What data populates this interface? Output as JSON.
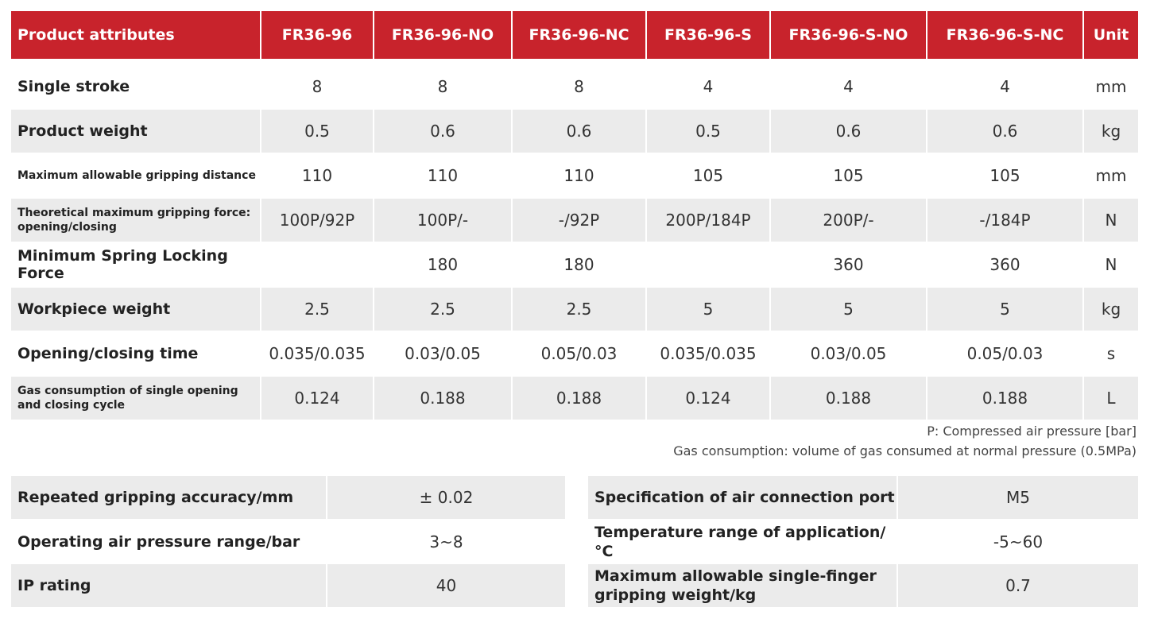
{
  "table": {
    "header": [
      "Product attributes",
      "FR36-96",
      "FR36-96-NO",
      "FR36-96-NC",
      "FR36-96-S",
      "FR36-96-S-NO",
      "FR36-96-S-NC",
      "Unit"
    ],
    "rows": [
      [
        "Single stroke",
        "8",
        "8",
        "8",
        "4",
        "4",
        "4",
        "mm"
      ],
      [
        "Product weight",
        "0.5",
        "0.6",
        "0.6",
        "0.5",
        "0.6",
        "0.6",
        "kg"
      ],
      [
        "Maximum allowable gripping distance",
        "110",
        "110",
        "110",
        "105",
        "105",
        "105",
        "mm"
      ],
      [
        "Theoretical maximum gripping force: opening/closing",
        "100P/92P",
        "100P/-",
        "-/92P",
        "200P/184P",
        "200P/-",
        "-/184P",
        "N"
      ],
      [
        "Minimum Spring Locking Force",
        null,
        "180",
        "180",
        null,
        "360",
        "360",
        "N"
      ],
      [
        "Workpiece weight",
        "2.5",
        "2.5",
        "2.5",
        "5",
        "5",
        "5",
        "kg"
      ],
      [
        "Opening/closing time",
        "0.035/0.035",
        "0.03/0.05",
        "0.05/0.03",
        "0.035/0.035",
        "0.03/0.05",
        "0.05/0.03",
        "s"
      ],
      [
        "Gas consumption of single opening and closing cycle",
        "0.124",
        "0.188",
        "0.188",
        "0.124",
        "0.188",
        "0.188",
        "L"
      ]
    ]
  },
  "notes": [
    "P: Compressed air pressure [bar]",
    "Gas consumption: volume of gas consumed at normal pressure (0.5MPa)"
  ],
  "specs": {
    "left": [
      [
        "Repeated gripping accuracy/mm",
        "± 0.02"
      ],
      [
        "Operating air pressure range/bar",
        "3~8"
      ],
      [
        "IP rating",
        "40"
      ]
    ],
    "right": [
      [
        "Specification of air connection port",
        "M5"
      ],
      [
        "Temperature range of application/°C",
        "-5~60"
      ],
      [
        "Maximum allowable single-finger gripping weight/kg",
        "0.7"
      ]
    ]
  }
}
